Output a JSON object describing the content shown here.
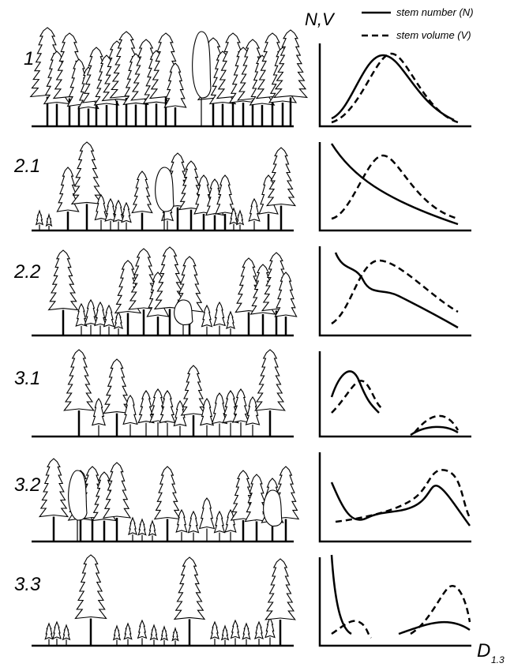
{
  "axis": {
    "y_label": "N,V",
    "x_label": "D",
    "x_label_subscript": "1.3"
  },
  "legend": [
    {
      "label": "stem number (N)"
    },
    {
      "label": "stem volume (V)"
    }
  ],
  "rows": [
    {
      "label": "1"
    },
    {
      "label": "2.1"
    },
    {
      "label": "2.2"
    },
    {
      "label": "3.1"
    },
    {
      "label": "3.2"
    },
    {
      "label": "3.3"
    }
  ]
}
